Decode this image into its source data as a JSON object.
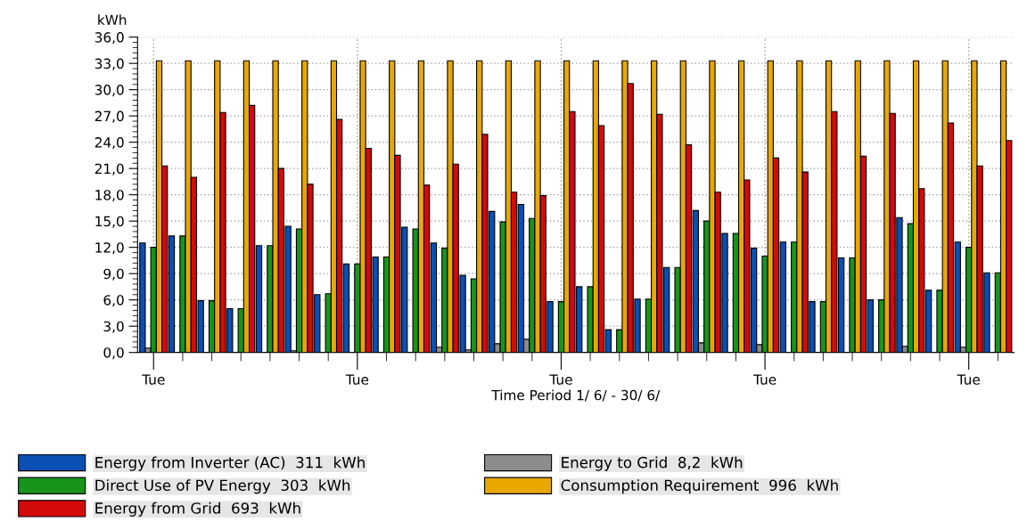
{
  "chart_data": {
    "type": "bar",
    "ylabel": "kWh",
    "xlabel": "Time Period 1/ 6/ - 30/ 6/",
    "categories": [
      "Tue",
      null,
      null,
      null,
      null,
      null,
      null,
      "Tue",
      null,
      null,
      null,
      null,
      null,
      null,
      "Tue",
      null,
      null,
      null,
      null,
      null,
      null,
      "Tue",
      null,
      null,
      null,
      null,
      null,
      null,
      "Tue",
      null
    ],
    "series": [
      {
        "name": "Energy from Inverter (AC)  311  kWh",
        "color": "#0a4fb4",
        "values": [
          12.5,
          13.3,
          5.9,
          5.0,
          12.2,
          14.4,
          6.6,
          10.1,
          10.9,
          14.3,
          12.5,
          8.8,
          16.1,
          16.9,
          5.8,
          7.5,
          2.6,
          6.1,
          9.7,
          16.2,
          13.6,
          11.9,
          12.6,
          5.8,
          10.8,
          6.0,
          15.4,
          7.1,
          12.6,
          9.1
        ]
      },
      {
        "name": "Energy to Grid  8,2  kWh",
        "color": "#8c8c8c",
        "values": [
          0.5,
          0,
          0,
          0,
          0,
          0.2,
          0,
          0,
          0,
          0,
          0.6,
          0.3,
          1.0,
          1.5,
          0,
          0,
          0,
          0,
          0,
          1.1,
          0,
          0.9,
          0,
          0,
          0,
          0,
          0.7,
          0,
          0.6,
          0
        ]
      },
      {
        "name": "Direct Use of PV Energy  303  kWh",
        "color": "#17951b",
        "values": [
          12.0,
          13.3,
          5.9,
          5.0,
          12.2,
          14.1,
          6.7,
          10.1,
          10.9,
          14.1,
          11.9,
          8.4,
          14.9,
          15.3,
          5.8,
          7.5,
          2.6,
          6.1,
          9.7,
          15.0,
          13.6,
          11.0,
          12.6,
          5.8,
          10.8,
          6.0,
          14.7,
          7.1,
          12.0,
          9.1
        ]
      },
      {
        "name": "Consumption Requirement  996  kWh",
        "color": "#e8a800",
        "values": [
          33.3,
          33.3,
          33.3,
          33.3,
          33.3,
          33.3,
          33.3,
          33.3,
          33.3,
          33.3,
          33.3,
          33.3,
          33.3,
          33.3,
          33.3,
          33.3,
          33.3,
          33.3,
          33.3,
          33.3,
          33.3,
          33.3,
          33.3,
          33.3,
          33.3,
          33.3,
          33.3,
          33.3,
          33.3,
          33.3
        ]
      },
      {
        "name": "Energy from Grid  693  kWh",
        "color": "#d40a0a",
        "values": [
          21.3,
          20.0,
          27.4,
          28.2,
          21.0,
          19.2,
          26.6,
          23.3,
          22.5,
          19.1,
          21.5,
          24.9,
          18.3,
          17.9,
          27.5,
          25.9,
          30.7,
          27.2,
          23.7,
          18.3,
          19.7,
          22.2,
          20.6,
          27.5,
          22.4,
          27.3,
          18.7,
          26.2,
          21.3,
          24.2
        ]
      }
    ],
    "ylim": [
      0,
      36
    ],
    "yticks": [
      {
        "value": 0,
        "label": "0,0"
      },
      {
        "value": 3,
        "label": "3,0"
      },
      {
        "value": 6,
        "label": "6,0"
      },
      {
        "value": 9,
        "label": "9,0"
      },
      {
        "value": 12,
        "label": "12,0"
      },
      {
        "value": 15,
        "label": "15,0"
      },
      {
        "value": 18,
        "label": "18,0"
      },
      {
        "value": 21,
        "label": "21,0"
      },
      {
        "value": 24,
        "label": "24,0"
      },
      {
        "value": 27,
        "label": "27,0"
      },
      {
        "value": 30,
        "label": "30,0"
      },
      {
        "value": 33,
        "label": "33,0"
      },
      {
        "value": 36,
        "label": "36,0"
      }
    ],
    "grid": true,
    "legend": "bottom"
  }
}
